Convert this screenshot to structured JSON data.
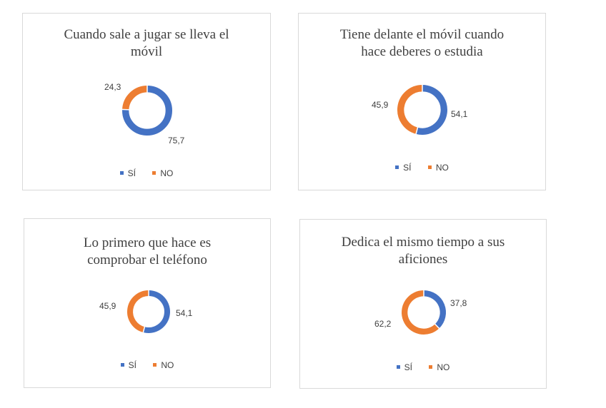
{
  "colors": {
    "si": "#4472c4",
    "no": "#ed7d31"
  },
  "chart_data": [
    {
      "type": "pie",
      "variant": "donut",
      "title": "Cuando sale a jugar se lleva el\nmóvil",
      "categories": [
        "SÍ",
        "NO"
      ],
      "values": [
        75.7,
        24.3
      ],
      "data_labels": [
        "75,7",
        "24,3"
      ],
      "legend_position": "bottom"
    },
    {
      "type": "pie",
      "variant": "donut",
      "title": "Tiene delante el móvil cuando\nhace deberes o estudia",
      "categories": [
        "SÍ",
        "NO"
      ],
      "values": [
        54.1,
        45.9
      ],
      "data_labels": [
        "54,1",
        "45,9"
      ],
      "legend_position": "bottom"
    },
    {
      "type": "pie",
      "variant": "donut",
      "title": "Lo primero que hace es\ncomprobar el teléfono",
      "categories": [
        "SÍ",
        "NO"
      ],
      "values": [
        54.1,
        45.9
      ],
      "data_labels": [
        "54,1",
        "45,9"
      ],
      "legend_position": "bottom"
    },
    {
      "type": "pie",
      "variant": "donut",
      "title": "Dedica el mismo tiempo a sus\naficiones",
      "categories": [
        "SÍ",
        "NO"
      ],
      "values": [
        37.8,
        62.2
      ],
      "data_labels": [
        "37,8",
        "62,2"
      ],
      "legend_position": "bottom"
    }
  ]
}
